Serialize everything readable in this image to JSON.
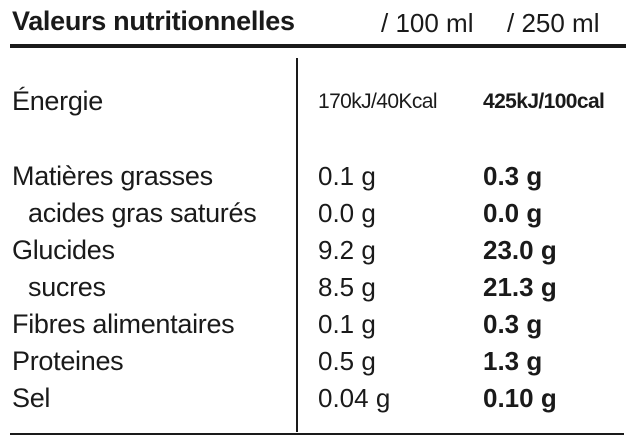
{
  "header": {
    "title": "Valeurs nutritionnelles",
    "col_100": "/ 100 ml",
    "col_250": "/ 250 ml"
  },
  "energy": {
    "label": "Énergie",
    "per_100": "170kJ/40Kcal",
    "per_250": "425kJ/100cal"
  },
  "rows": [
    {
      "label": "Matières grasses",
      "per_100": "0.1 g",
      "per_250": "0.3 g"
    },
    {
      "label": "acides gras saturés",
      "per_100": "0.0 g",
      "per_250": "0.0 g"
    },
    {
      "label": "Glucides",
      "per_100": "9.2 g",
      "per_250": "23.0 g"
    },
    {
      "label": "sucres",
      "per_100": "8.5 g",
      "per_250": "21.3 g"
    },
    {
      "label": "Fibres alimentaires",
      "per_100": "0.1 g",
      "per_250": "0.3 g"
    },
    {
      "label": "Proteines",
      "per_100": "0.5 g",
      "per_250": "1.3 g"
    },
    {
      "label": "Sel",
      "per_100": "0.04 g",
      "per_250": "0.10 g"
    }
  ]
}
